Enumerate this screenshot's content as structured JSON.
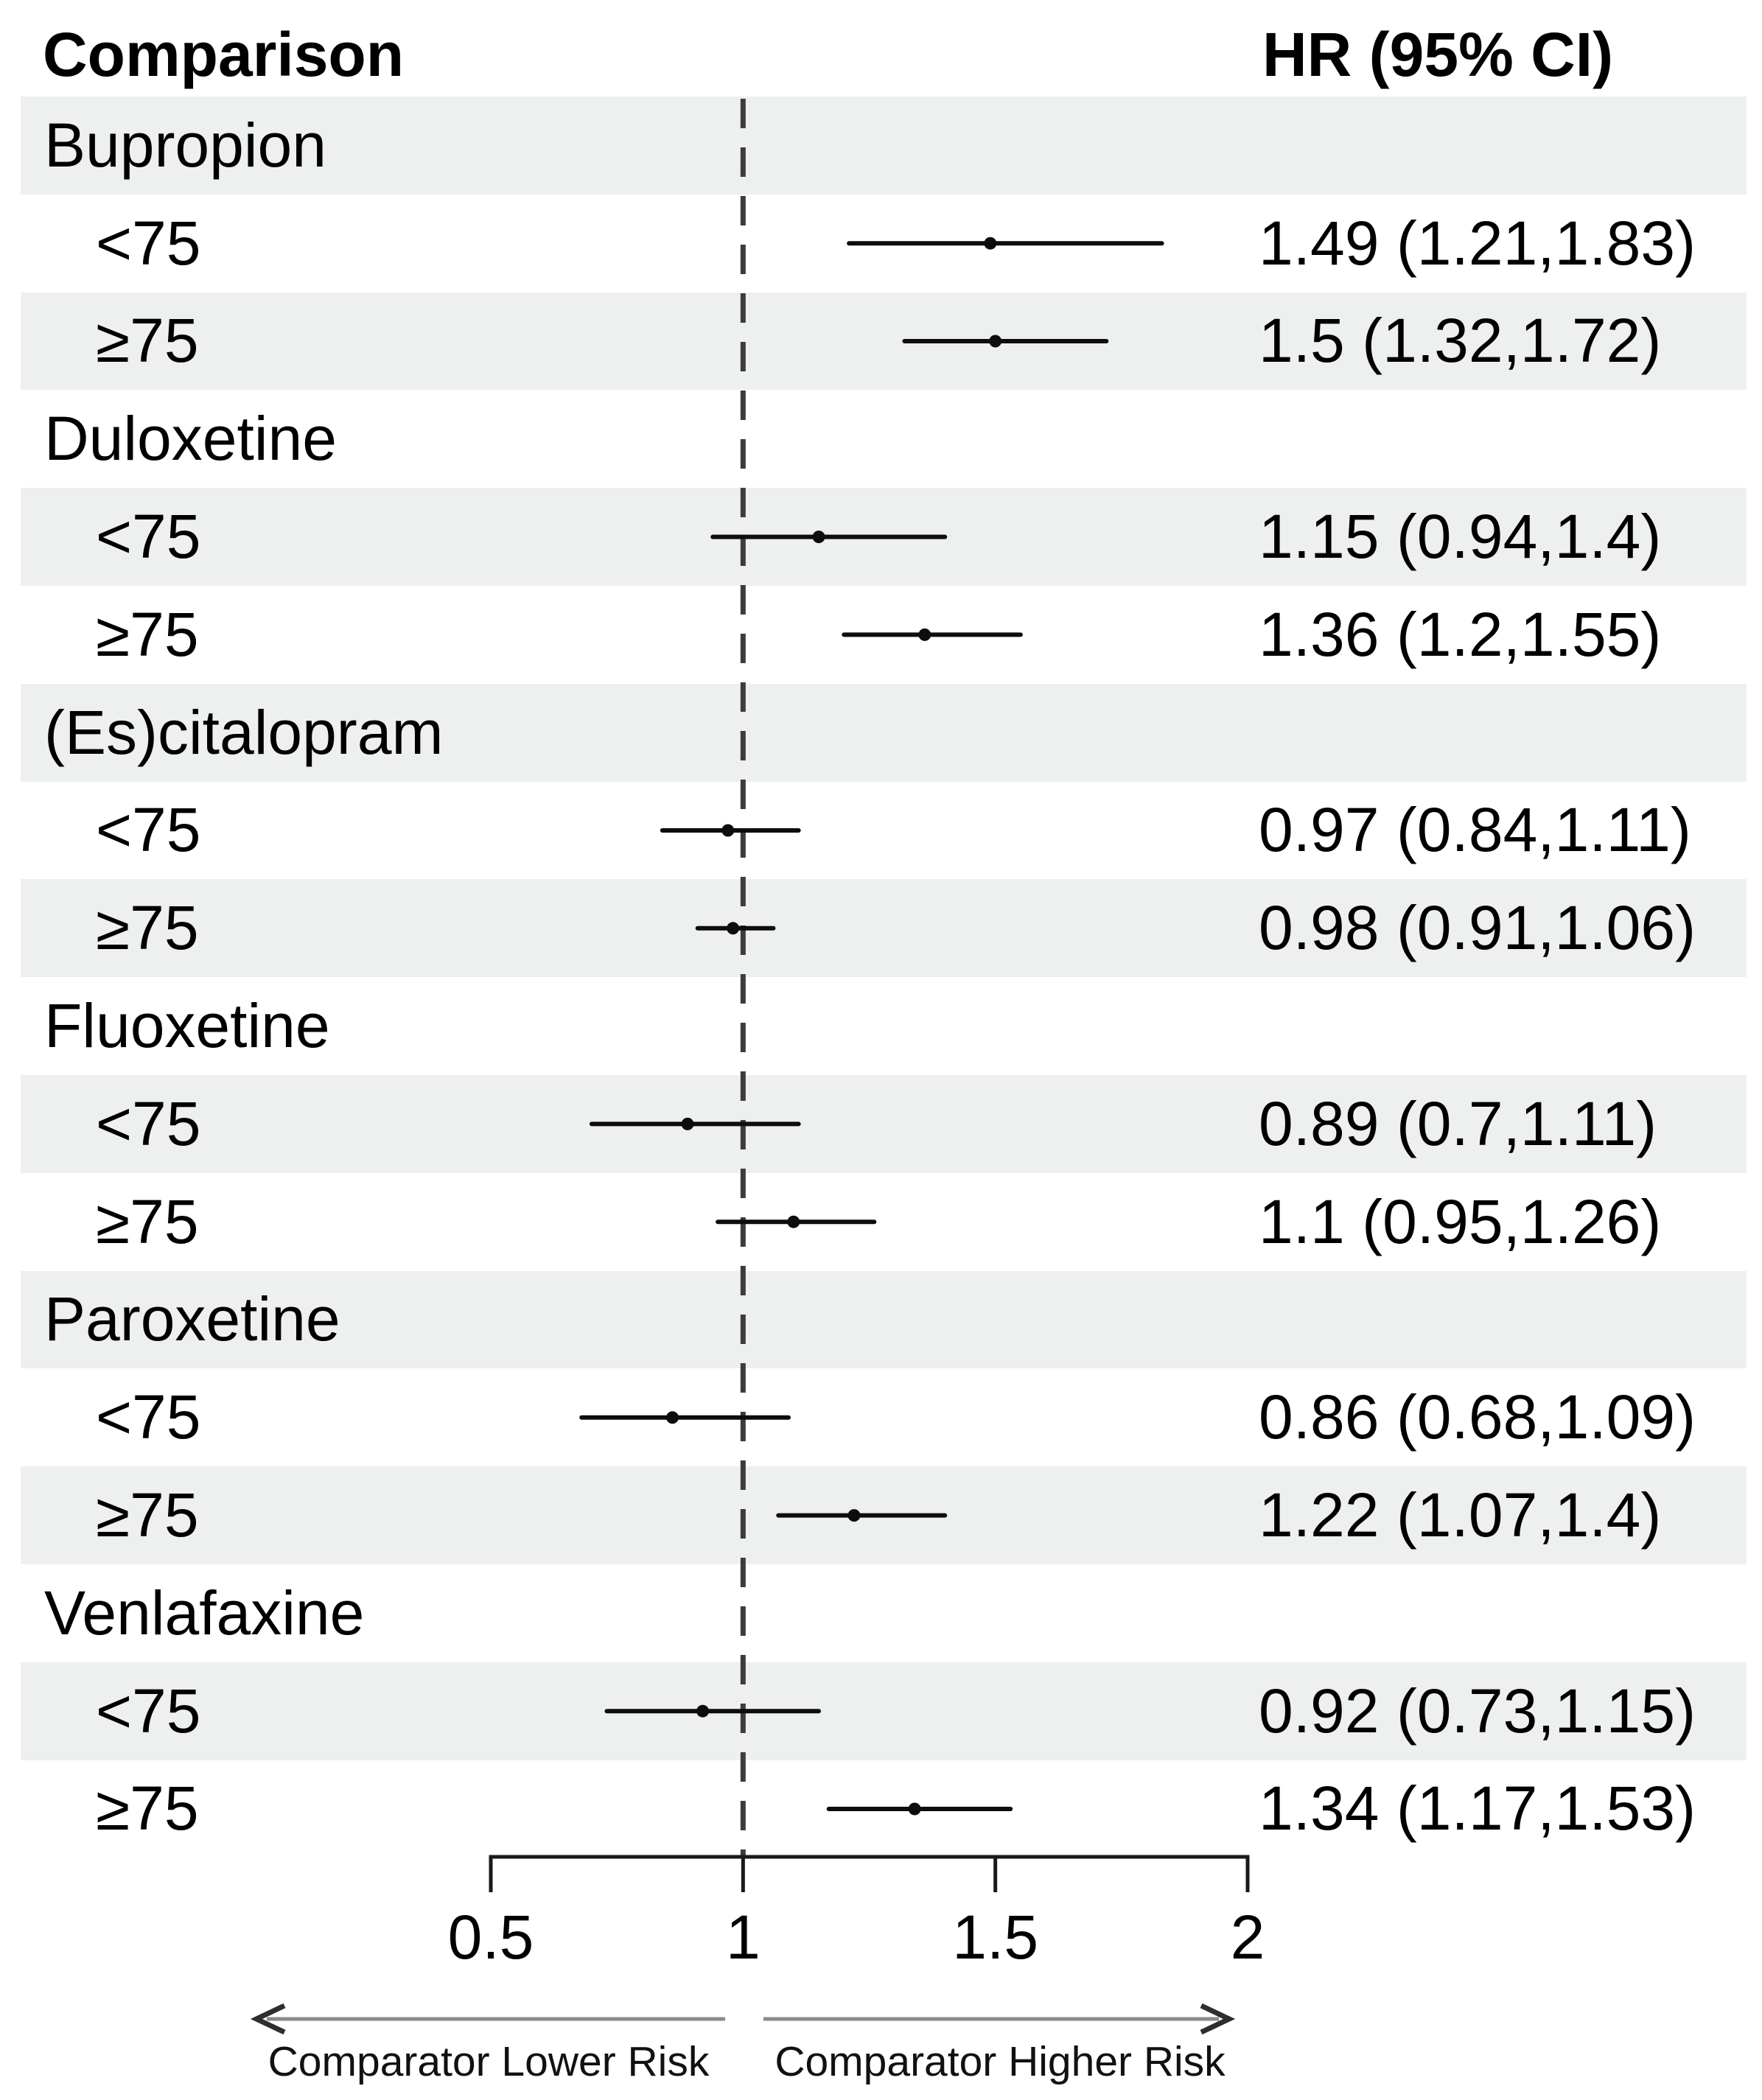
{
  "header": {
    "comparison": "Comparison",
    "hr_ci": "HR (95% CI)"
  },
  "axis": {
    "tick_labels": [
      "0.5",
      "1",
      "1.5",
      "2"
    ],
    "ticks": [
      0.5,
      1,
      1.5,
      2
    ],
    "min": 0.5,
    "max": 2,
    "reference_value": 1
  },
  "footer": {
    "lower_risk_label": "Comparator Lower Risk",
    "higher_risk_label": "Comparator Higher Risk"
  },
  "colors": {
    "stripe": "#edf0ef",
    "text": "#000000",
    "ci_line": "#0d0d0d",
    "reference_line": "#3c3c3c",
    "axis_line": "#1a1a1a",
    "arrow_line": "#8a8a8a",
    "arrow_head": "#2e2e2e"
  },
  "chart_data": {
    "type": "forest",
    "title": "",
    "xlabel": "",
    "xlim": [
      0.5,
      2
    ],
    "xticks": [
      0.5,
      1,
      1.5,
      2
    ],
    "reference_line": 1,
    "column_headers": [
      "Comparison",
      "HR (95% CI)"
    ],
    "groups": [
      {
        "label": "Bupropion",
        "entries": [
          {
            "label": "<75",
            "hr": 1.49,
            "ci_low": 1.21,
            "ci_high": 1.83,
            "hr_label": "1.49 (1.21,1.83)"
          },
          {
            "label": "≥75",
            "hr": 1.5,
            "ci_low": 1.32,
            "ci_high": 1.72,
            "hr_label": "1.5 (1.32,1.72)"
          }
        ]
      },
      {
        "label": "Duloxetine",
        "entries": [
          {
            "label": "<75",
            "hr": 1.15,
            "ci_low": 0.94,
            "ci_high": 1.4,
            "hr_label": "1.15 (0.94,1.4)"
          },
          {
            "label": "≥75",
            "hr": 1.36,
            "ci_low": 1.2,
            "ci_high": 1.55,
            "hr_label": "1.36 (1.2,1.55)"
          }
        ]
      },
      {
        "label": "(Es)citalopram",
        "entries": [
          {
            "label": "<75",
            "hr": 0.97,
            "ci_low": 0.84,
            "ci_high": 1.11,
            "hr_label": "0.97 (0.84,1.11)"
          },
          {
            "label": "≥75",
            "hr": 0.98,
            "ci_low": 0.91,
            "ci_high": 1.06,
            "hr_label": "0.98 (0.91,1.06)"
          }
        ]
      },
      {
        "label": "Fluoxetine",
        "entries": [
          {
            "label": "<75",
            "hr": 0.89,
            "ci_low": 0.7,
            "ci_high": 1.11,
            "hr_label": "0.89 (0.7,1.11)"
          },
          {
            "label": "≥75",
            "hr": 1.1,
            "ci_low": 0.95,
            "ci_high": 1.26,
            "hr_label": "1.1 (0.95,1.26)"
          }
        ]
      },
      {
        "label": "Paroxetine",
        "entries": [
          {
            "label": "<75",
            "hr": 0.86,
            "ci_low": 0.68,
            "ci_high": 1.09,
            "hr_label": "0.86 (0.68,1.09)"
          },
          {
            "label": "≥75",
            "hr": 1.22,
            "ci_low": 1.07,
            "ci_high": 1.4,
            "hr_label": "1.22 (1.07,1.4)"
          }
        ]
      },
      {
        "label": "Venlafaxine",
        "entries": [
          {
            "label": "<75",
            "hr": 0.92,
            "ci_low": 0.73,
            "ci_high": 1.15,
            "hr_label": "0.92 (0.73,1.15)"
          },
          {
            "label": "≥75",
            "hr": 1.34,
            "ci_low": 1.17,
            "ci_high": 1.53,
            "hr_label": "1.34 (1.17,1.53)"
          }
        ]
      }
    ]
  }
}
